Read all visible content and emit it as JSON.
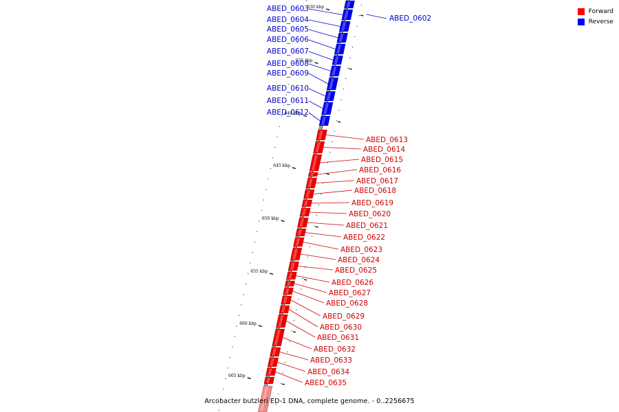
{
  "legend": [
    {
      "label": "Forward",
      "color": "#ff0000"
    },
    {
      "label": "Reverse",
      "color": "#0000ff"
    }
  ],
  "caption": "Arcobacter butzleri ED-1 DNA, complete genome. - 0..2256675",
  "colors": {
    "forward": "#ee0000",
    "reverse": "#0000ee",
    "forward_text": "#cc0000",
    "reverse_text": "#0000cc",
    "backbone": "#9a9a9a"
  },
  "ticks": [
    "630 kbp",
    "635 kbp",
    "640 kbp",
    "645 kbp",
    "650 kbp",
    "655 kbp",
    "660 kbp",
    "665 kbp"
  ],
  "genes_reverse": [
    "ABED_0602",
    "ABED_0603",
    "ABED_0604",
    "ABED_0605",
    "ABED_0606",
    "ABED_0607",
    "ABED_0608",
    "ABED_0609",
    "ABED_0610",
    "ABED_0611",
    "ABED_0612"
  ],
  "genes_forward": [
    "ABED_0613",
    "ABED_0614",
    "ABED_0615",
    "ABED_0616",
    "ABED_0617",
    "ABED_0618",
    "ABED_0619",
    "ABED_0620",
    "ABED_0621",
    "ABED_0622",
    "ABED_0623",
    "ABED_0624",
    "ABED_0625",
    "ABED_0626",
    "ABED_0627",
    "ABED_0628",
    "ABED_0629",
    "ABED_0630",
    "ABED_0631",
    "ABED_0632",
    "ABED_0633",
    "ABED_0634",
    "ABED_0635"
  ]
}
